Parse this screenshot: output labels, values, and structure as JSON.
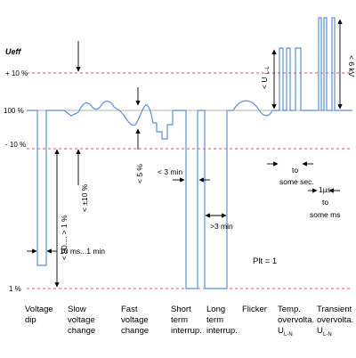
{
  "axis": {
    "ylabel": "Ueff",
    "ticks": {
      "plus10": "+ 10 %",
      "hundred": "100 %",
      "minus10": "- 10 %",
      "one": "1 %"
    }
  },
  "annotations": {
    "dip_range": "< 90.... > 1 %",
    "dip_time": "10 ms...1 min",
    "slow_change": "< ±10 %",
    "fast_change": "< 5 %",
    "short_interrupt_time": "< 3 min",
    "long_interrupt_time": ">3 min",
    "plt": "Plt = 1",
    "temp_time_1": "to",
    "temp_time_2": "some sec.",
    "u_ll": "< U",
    "u_ll_sub": "L-L",
    "transient_time_1": "1µs",
    "transient_time_2": "to",
    "transient_time_3": "some ms",
    "transient_amp": "< 6 kV"
  },
  "categories": [
    {
      "line1": "Voltage",
      "line2": "dip",
      "line3": ""
    },
    {
      "line1": "Slow",
      "line2": "voltage",
      "line3": "change"
    },
    {
      "line1": "Fast",
      "line2": "voltage",
      "line3": "change"
    },
    {
      "line1": "Short",
      "line2": "term",
      "line3": "interrup."
    },
    {
      "line1": "Long",
      "line2": "term",
      "line3": "interrup."
    },
    {
      "line1": "Flicker",
      "line2": "",
      "line3": ""
    },
    {
      "line1": "Temp.",
      "line2": "overvolta.",
      "line3": "U",
      "sub": "L-N"
    },
    {
      "line1": "Transient",
      "line2": "overvolta.",
      "line3": "U",
      "sub": "L-N"
    }
  ],
  "colors": {
    "signal": "#5b8fe0",
    "reference": "#e8505a",
    "text": "#000000"
  }
}
